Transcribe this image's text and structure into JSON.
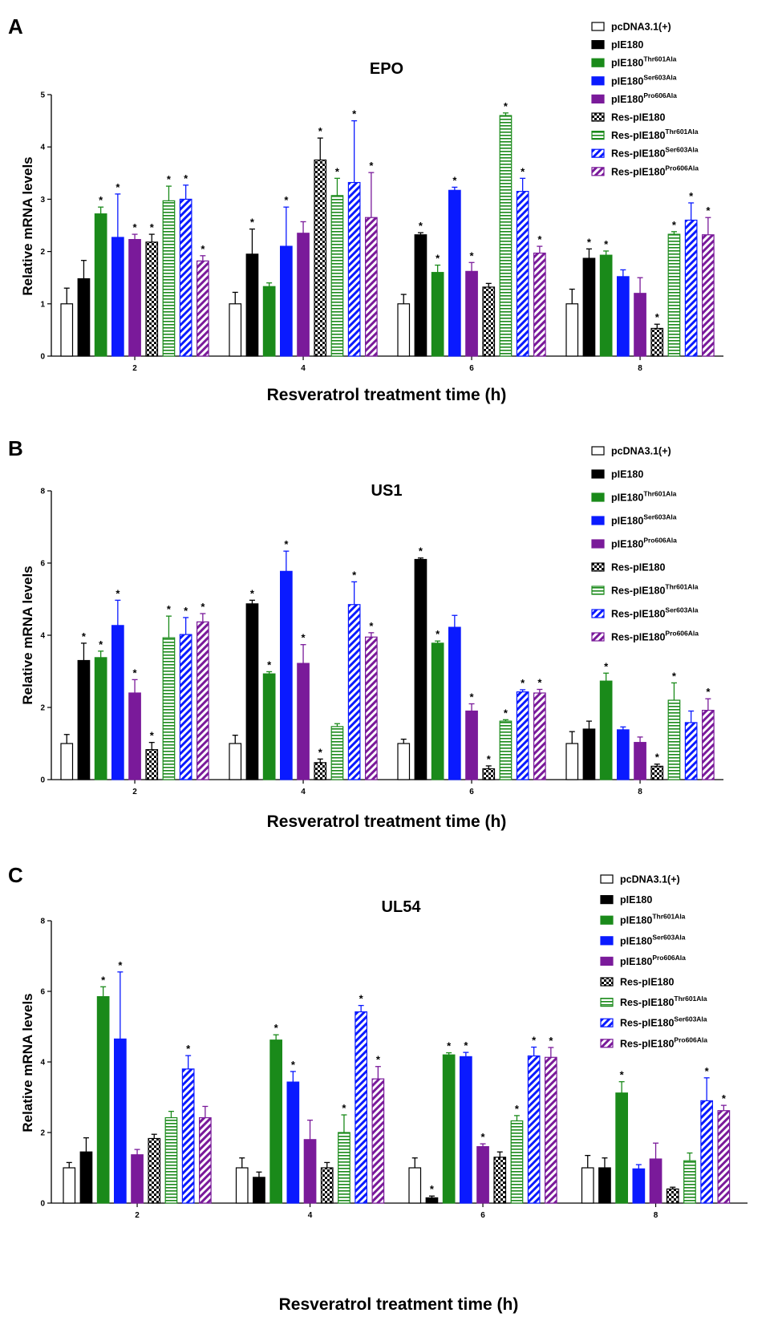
{
  "legend": [
    {
      "key": "pcDNA",
      "base": "pcDNA3.1(+)",
      "sup": "",
      "color": "#ffffff",
      "pattern": "none"
    },
    {
      "key": "pIE180",
      "base": "pIE180",
      "sup": "",
      "color": "#000000",
      "pattern": "solid"
    },
    {
      "key": "pIE180_Thr601Ala",
      "base": "pIE180",
      "sup": "Thr601Ala",
      "color": "#1a8a1a",
      "pattern": "solid"
    },
    {
      "key": "pIE180_Ser603Ala",
      "base": "pIE180",
      "sup": "Ser603Ala",
      "color": "#0a1aff",
      "pattern": "solid"
    },
    {
      "key": "pIE180_Pro606Ala",
      "base": "pIE180",
      "sup": "Pro606Ala",
      "color": "#7a1a9a",
      "pattern": "solid"
    },
    {
      "key": "Res_pIE180",
      "base": "Res-pIE180",
      "sup": "",
      "color": "#000000",
      "pattern": "checker"
    },
    {
      "key": "Res_pIE180_Thr601Ala",
      "base": "Res-pIE180",
      "sup": "Thr601Ala",
      "color": "#1a8a1a",
      "pattern": "hstripe"
    },
    {
      "key": "Res_pIE180_Ser603Ala",
      "base": "Res-pIE180",
      "sup": "Ser603Ala",
      "color": "#0a1aff",
      "pattern": "diag"
    },
    {
      "key": "Res_pIE180_Pro606Ala",
      "base": "Res-pIE180",
      "sup": "Pro606Ala",
      "color": "#7a1a9a",
      "pattern": "diag"
    }
  ],
  "chart_data": [
    {
      "panel": "A",
      "type": "bar",
      "title": "EPO",
      "xlabel": "Resveratrol treatment time (h)",
      "ylabel": "Relative mRNA levels",
      "ylim": [
        0,
        5
      ],
      "yticks": [
        0,
        1,
        2,
        3,
        4,
        5
      ],
      "categories": [
        "2",
        "4",
        "6",
        "8"
      ],
      "series": [
        {
          "name": "pcDNA3.1(+)",
          "values": [
            1.0,
            1.0,
            1.0,
            1.0
          ],
          "errors": [
            0.3,
            0.22,
            0.18,
            0.28
          ],
          "sig": [
            false,
            false,
            false,
            false
          ]
        },
        {
          "name": "pIE180",
          "values": [
            1.48,
            1.95,
            2.32,
            1.87
          ],
          "errors": [
            0.35,
            0.48,
            0.04,
            0.18
          ],
          "sig": [
            false,
            true,
            true,
            true
          ]
        },
        {
          "name": "pIE180Thr601Ala",
          "values": [
            2.72,
            1.33,
            1.6,
            1.93
          ],
          "errors": [
            0.13,
            0.07,
            0.14,
            0.08
          ],
          "sig": [
            true,
            false,
            true,
            true
          ]
        },
        {
          "name": "pIE180Ser603Ala",
          "values": [
            2.27,
            2.1,
            3.17,
            1.52
          ],
          "errors": [
            0.83,
            0.75,
            0.06,
            0.13
          ],
          "sig": [
            true,
            true,
            true,
            false
          ]
        },
        {
          "name": "pIE180Pro606Ala",
          "values": [
            2.23,
            2.35,
            1.62,
            1.2
          ],
          "errors": [
            0.1,
            0.22,
            0.17,
            0.3
          ],
          "sig": [
            true,
            false,
            true,
            false
          ]
        },
        {
          "name": "Res-pIE180",
          "values": [
            2.18,
            3.75,
            1.32,
            0.53
          ],
          "errors": [
            0.15,
            0.42,
            0.07,
            0.08
          ],
          "sig": [
            true,
            true,
            false,
            true
          ]
        },
        {
          "name": "Res-pIE180Thr601Ala",
          "values": [
            2.97,
            3.07,
            4.6,
            2.33
          ],
          "errors": [
            0.28,
            0.33,
            0.05,
            0.05
          ],
          "sig": [
            true,
            true,
            true,
            true
          ]
        },
        {
          "name": "Res-pIE180Ser603Ala",
          "values": [
            3.0,
            3.32,
            3.15,
            2.6
          ],
          "errors": [
            0.27,
            1.18,
            0.25,
            0.33
          ],
          "sig": [
            true,
            true,
            true,
            true
          ]
        },
        {
          "name": "Res-pIE180Pro606Ala",
          "values": [
            1.82,
            2.65,
            1.97,
            2.32
          ],
          "errors": [
            0.1,
            0.86,
            0.13,
            0.33
          ],
          "sig": [
            true,
            true,
            true,
            true
          ]
        }
      ]
    },
    {
      "panel": "B",
      "type": "bar",
      "title": "US1",
      "xlabel": "Resveratrol treatment time (h)",
      "ylabel": "Relative mRNA levels",
      "ylim": [
        0,
        8
      ],
      "yticks": [
        0,
        2,
        4,
        6,
        8
      ],
      "categories": [
        "2",
        "4",
        "6",
        "8"
      ],
      "series": [
        {
          "name": "pcDNA3.1(+)",
          "values": [
            1.0,
            1.0,
            1.0,
            1.0
          ],
          "errors": [
            0.25,
            0.23,
            0.12,
            0.33
          ],
          "sig": [
            false,
            false,
            false,
            false
          ]
        },
        {
          "name": "pIE180",
          "values": [
            3.3,
            4.87,
            6.1,
            1.4
          ],
          "errors": [
            0.48,
            0.1,
            0.04,
            0.22
          ],
          "sig": [
            true,
            true,
            true,
            false
          ]
        },
        {
          "name": "pIE180Thr601Ala",
          "values": [
            3.38,
            2.93,
            3.78,
            2.73
          ],
          "errors": [
            0.18,
            0.06,
            0.06,
            0.22
          ],
          "sig": [
            true,
            true,
            true,
            true
          ]
        },
        {
          "name": "pIE180Ser603Ala",
          "values": [
            4.27,
            5.77,
            4.22,
            1.38
          ],
          "errors": [
            0.7,
            0.56,
            0.33,
            0.08
          ],
          "sig": [
            true,
            true,
            false,
            false
          ]
        },
        {
          "name": "pIE180Pro606Ala",
          "values": [
            2.4,
            3.22,
            1.9,
            1.03
          ],
          "errors": [
            0.37,
            0.52,
            0.2,
            0.15
          ],
          "sig": [
            true,
            true,
            true,
            false
          ]
        },
        {
          "name": "Res-pIE180",
          "values": [
            0.83,
            0.47,
            0.3,
            0.37
          ],
          "errors": [
            0.2,
            0.1,
            0.08,
            0.06
          ],
          "sig": [
            true,
            true,
            true,
            true
          ]
        },
        {
          "name": "Res-pIE180Thr601Ala",
          "values": [
            3.93,
            1.47,
            1.62,
            2.2
          ],
          "errors": [
            0.6,
            0.08,
            0.04,
            0.48
          ],
          "sig": [
            true,
            false,
            true,
            true
          ]
        },
        {
          "name": "Res-pIE180Ser603Ala",
          "values": [
            4.02,
            4.85,
            2.43,
            1.58
          ],
          "errors": [
            0.47,
            0.63,
            0.06,
            0.32
          ],
          "sig": [
            true,
            true,
            true,
            false
          ]
        },
        {
          "name": "Res-pIE180Pro606Ala",
          "values": [
            4.37,
            3.95,
            2.4,
            1.92
          ],
          "errors": [
            0.23,
            0.12,
            0.1,
            0.32
          ],
          "sig": [
            true,
            true,
            true,
            true
          ]
        }
      ]
    },
    {
      "panel": "C",
      "type": "bar",
      "title": "UL54",
      "xlabel": "Resveratrol treatment time (h)",
      "ylabel": "Relative mRNA levels",
      "ylim": [
        0,
        8
      ],
      "yticks": [
        0,
        2,
        4,
        6,
        8
      ],
      "categories": [
        "2",
        "4",
        "6",
        "8"
      ],
      "series": [
        {
          "name": "pcDNA3.1(+)",
          "values": [
            1.0,
            1.0,
            1.0,
            1.0
          ],
          "errors": [
            0.15,
            0.28,
            0.28,
            0.35
          ],
          "sig": [
            false,
            false,
            false,
            false
          ]
        },
        {
          "name": "pIE180",
          "values": [
            1.45,
            0.73,
            0.15,
            1.0
          ],
          "errors": [
            0.4,
            0.15,
            0.05,
            0.28
          ],
          "sig": [
            false,
            false,
            true,
            false
          ]
        },
        {
          "name": "pIE180Thr601Ala",
          "values": [
            5.85,
            4.62,
            4.2,
            3.12
          ],
          "errors": [
            0.28,
            0.15,
            0.06,
            0.32
          ],
          "sig": [
            true,
            true,
            true,
            true
          ]
        },
        {
          "name": "pIE180Ser603Ala",
          "values": [
            4.65,
            3.43,
            4.15,
            0.97
          ],
          "errors": [
            1.9,
            0.3,
            0.12,
            0.12
          ],
          "sig": [
            true,
            true,
            true,
            false
          ]
        },
        {
          "name": "pIE180Pro606Ala",
          "values": [
            1.37,
            1.8,
            1.6,
            1.25
          ],
          "errors": [
            0.15,
            0.55,
            0.08,
            0.45
          ],
          "sig": [
            false,
            false,
            true,
            false
          ]
        },
        {
          "name": "Res-pIE180",
          "values": [
            1.83,
            1.0,
            1.3,
            0.4
          ],
          "errors": [
            0.12,
            0.15,
            0.15,
            0.05
          ],
          "sig": [
            false,
            false,
            false,
            false
          ]
        },
        {
          "name": "Res-pIE180Thr601Ala",
          "values": [
            2.42,
            2.0,
            2.33,
            1.2
          ],
          "errors": [
            0.18,
            0.5,
            0.15,
            0.22
          ],
          "sig": [
            false,
            true,
            true,
            false
          ]
        },
        {
          "name": "Res-pIE180Ser603Ala",
          "values": [
            3.8,
            5.42,
            4.17,
            2.9
          ],
          "errors": [
            0.38,
            0.18,
            0.25,
            0.65
          ],
          "sig": [
            true,
            true,
            true,
            true
          ]
        },
        {
          "name": "Res-pIE180Pro606Ala",
          "values": [
            2.42,
            3.52,
            4.13,
            2.62
          ],
          "errors": [
            0.32,
            0.35,
            0.28,
            0.15
          ],
          "sig": [
            false,
            true,
            true,
            true
          ]
        }
      ]
    }
  ]
}
